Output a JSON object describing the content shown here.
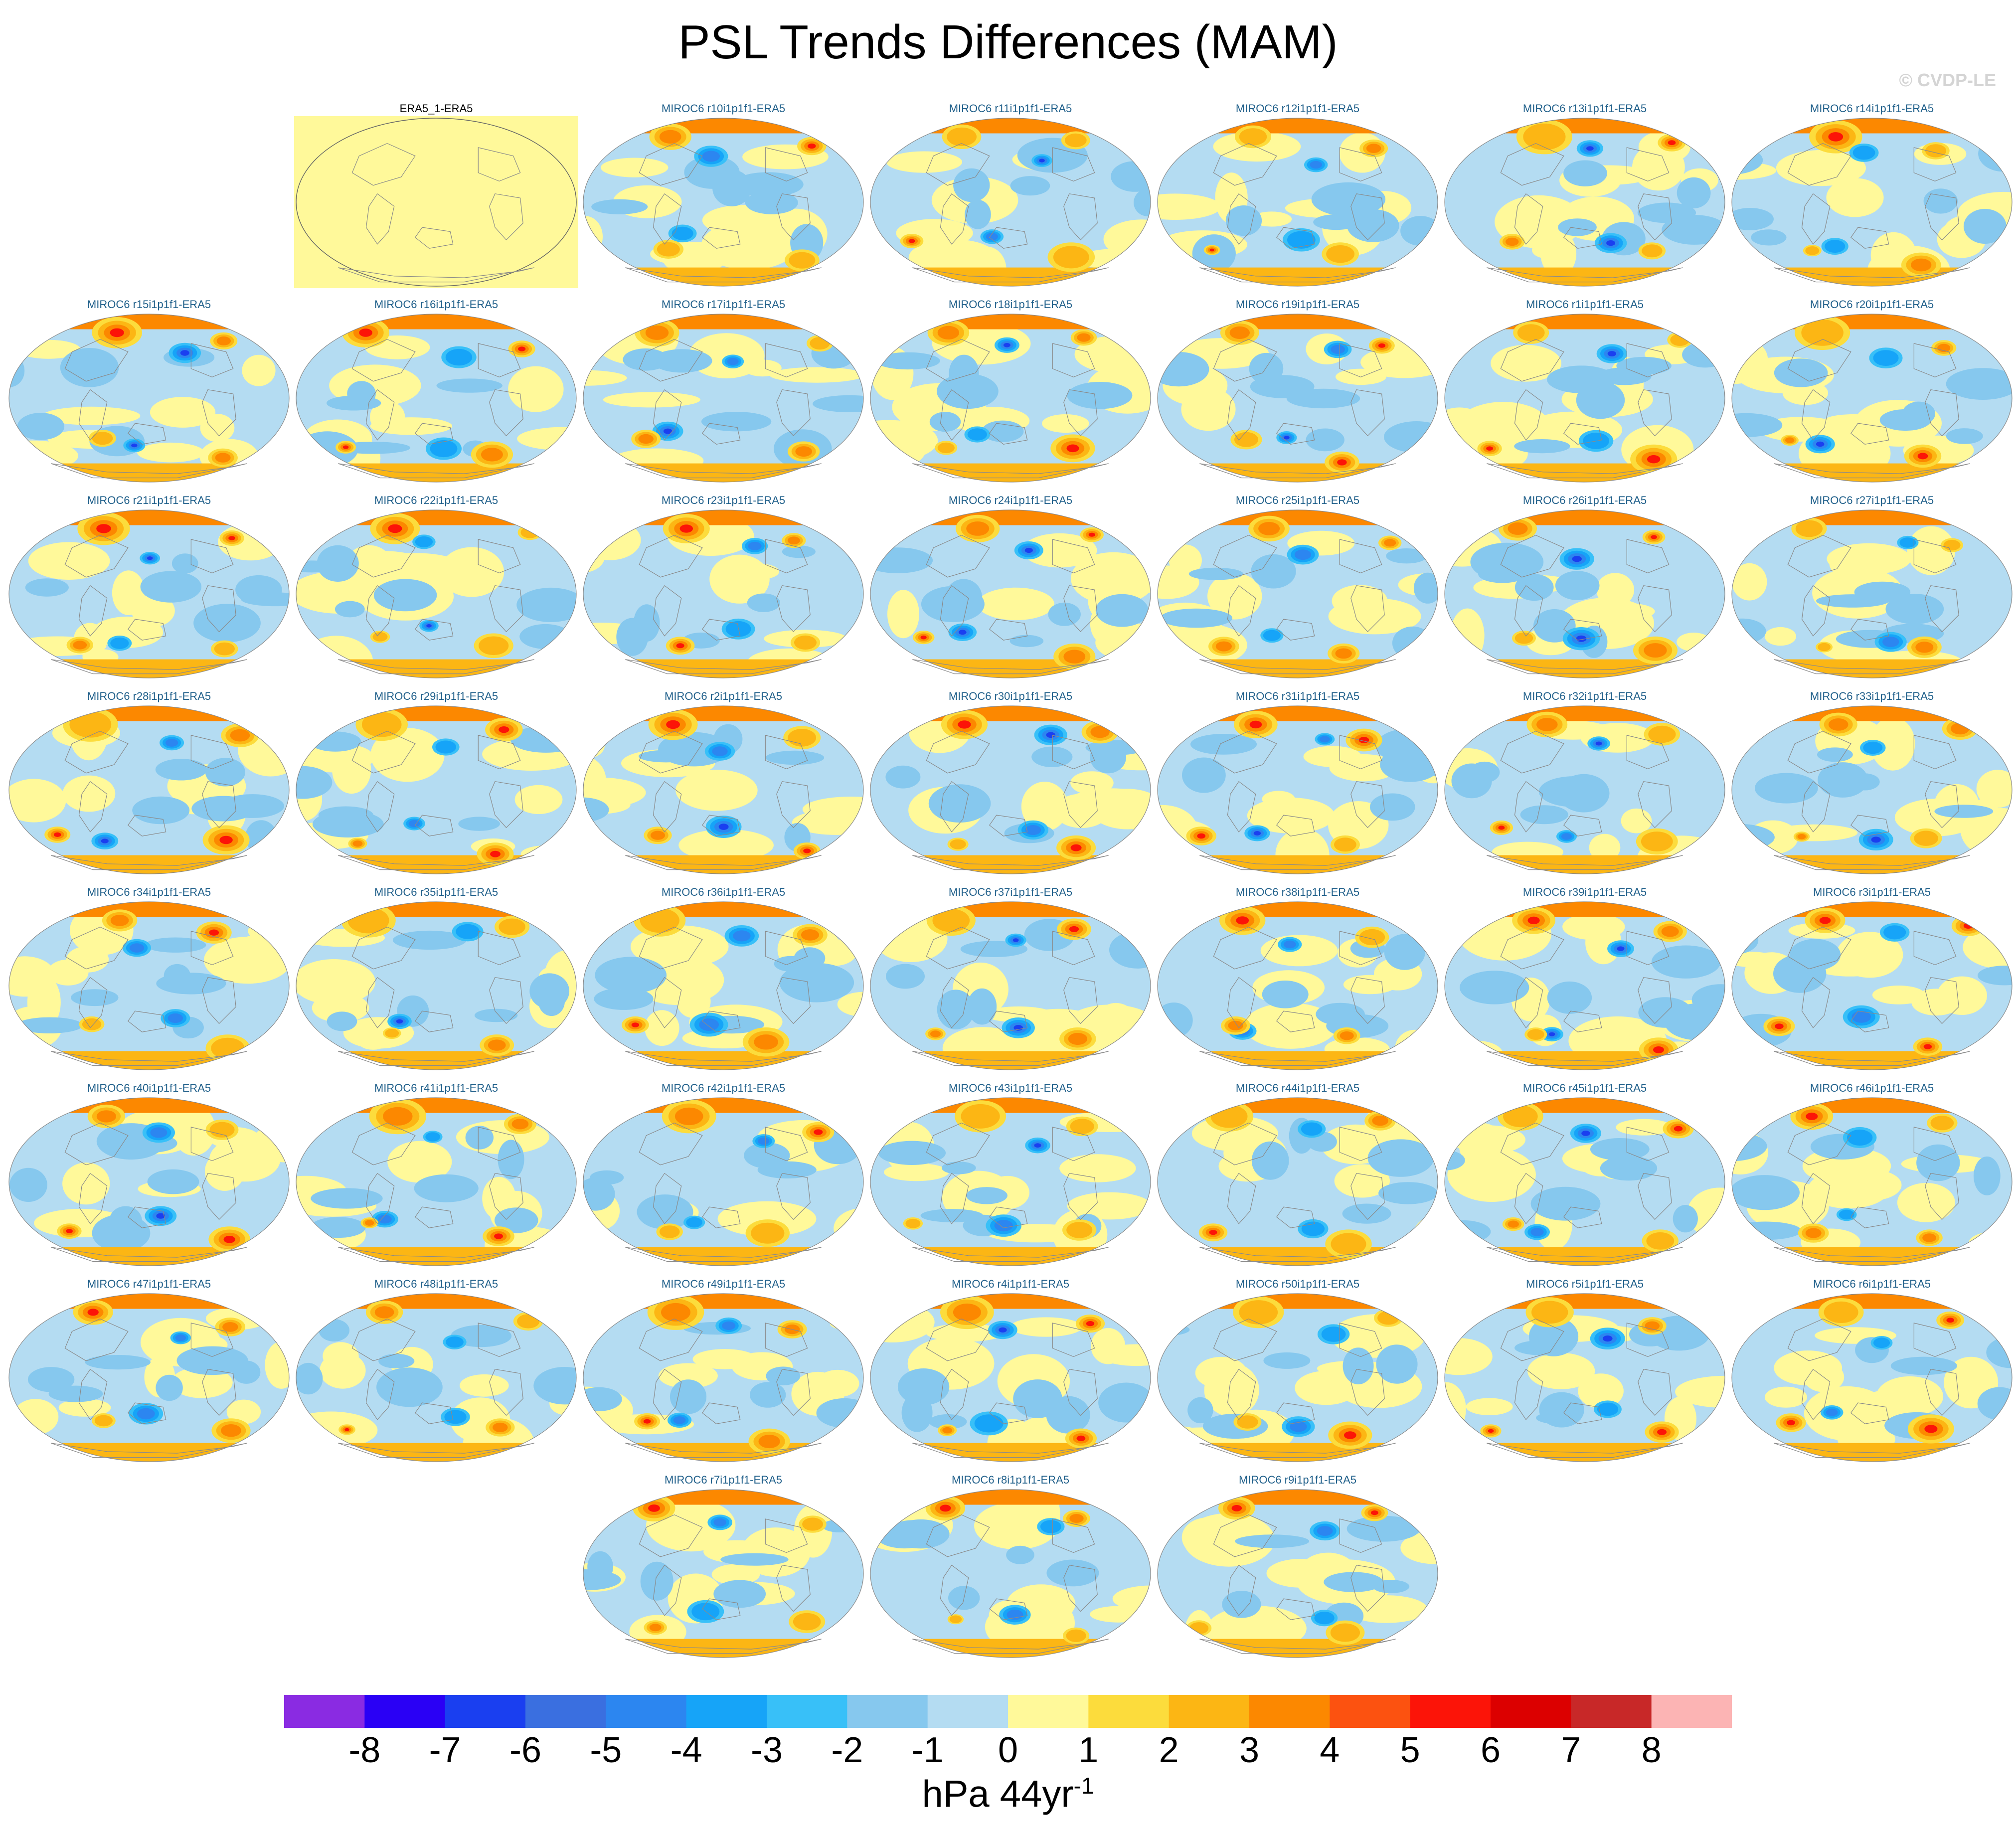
{
  "title": "PSL Trends Differences (MAM)",
  "copyright": "© CVDP-LE",
  "panels": [
    {
      "label": "ERA5_1-ERA5",
      "type": "obs"
    },
    {
      "label": "MIROC6 r10i1p1f1-ERA5"
    },
    {
      "label": "MIROC6 r11i1p1f1-ERA5"
    },
    {
      "label": "MIROC6 r12i1p1f1-ERA5"
    },
    {
      "label": "MIROC6 r13i1p1f1-ERA5"
    },
    {
      "label": "MIROC6 r14i1p1f1-ERA5"
    },
    {
      "label": "MIROC6 r15i1p1f1-ERA5"
    },
    {
      "label": "MIROC6 r16i1p1f1-ERA5"
    },
    {
      "label": "MIROC6 r17i1p1f1-ERA5"
    },
    {
      "label": "MIROC6 r18i1p1f1-ERA5"
    },
    {
      "label": "MIROC6 r19i1p1f1-ERA5"
    },
    {
      "label": "MIROC6 r1i1p1f1-ERA5"
    },
    {
      "label": "MIROC6 r20i1p1f1-ERA5"
    },
    {
      "label": "MIROC6 r21i1p1f1-ERA5"
    },
    {
      "label": "MIROC6 r22i1p1f1-ERA5"
    },
    {
      "label": "MIROC6 r23i1p1f1-ERA5"
    },
    {
      "label": "MIROC6 r24i1p1f1-ERA5"
    },
    {
      "label": "MIROC6 r25i1p1f1-ERA5"
    },
    {
      "label": "MIROC6 r26i1p1f1-ERA5"
    },
    {
      "label": "MIROC6 r27i1p1f1-ERA5"
    },
    {
      "label": "MIROC6 r28i1p1f1-ERA5"
    },
    {
      "label": "MIROC6 r29i1p1f1-ERA5"
    },
    {
      "label": "MIROC6 r2i1p1f1-ERA5"
    },
    {
      "label": "MIROC6 r30i1p1f1-ERA5"
    },
    {
      "label": "MIROC6 r31i1p1f1-ERA5"
    },
    {
      "label": "MIROC6 r32i1p1f1-ERA5"
    },
    {
      "label": "MIROC6 r33i1p1f1-ERA5"
    },
    {
      "label": "MIROC6 r34i1p1f1-ERA5"
    },
    {
      "label": "MIROC6 r35i1p1f1-ERA5"
    },
    {
      "label": "MIROC6 r36i1p1f1-ERA5"
    },
    {
      "label": "MIROC6 r37i1p1f1-ERA5"
    },
    {
      "label": "MIROC6 r38i1p1f1-ERA5"
    },
    {
      "label": "MIROC6 r39i1p1f1-ERA5"
    },
    {
      "label": "MIROC6 r3i1p1f1-ERA5"
    },
    {
      "label": "MIROC6 r40i1p1f1-ERA5"
    },
    {
      "label": "MIROC6 r41i1p1f1-ERA5"
    },
    {
      "label": "MIROC6 r42i1p1f1-ERA5"
    },
    {
      "label": "MIROC6 r43i1p1f1-ERA5"
    },
    {
      "label": "MIROC6 r44i1p1f1-ERA5"
    },
    {
      "label": "MIROC6 r45i1p1f1-ERA5"
    },
    {
      "label": "MIROC6 r46i1p1f1-ERA5"
    },
    {
      "label": "MIROC6 r47i1p1f1-ERA5"
    },
    {
      "label": "MIROC6 r48i1p1f1-ERA5"
    },
    {
      "label": "MIROC6 r49i1p1f1-ERA5"
    },
    {
      "label": "MIROC6 r4i1p1f1-ERA5"
    },
    {
      "label": "MIROC6 r50i1p1f1-ERA5"
    },
    {
      "label": "MIROC6 r5i1p1f1-ERA5"
    },
    {
      "label": "MIROC6 r6i1p1f1-ERA5"
    },
    {
      "label": "MIROC6 r7i1p1f1-ERA5"
    },
    {
      "label": "MIROC6 r8i1p1f1-ERA5"
    },
    {
      "label": "MIROC6 r9i1p1f1-ERA5"
    }
  ],
  "colorbar": {
    "ticks": [
      "-8",
      "-7",
      "-6",
      "-5",
      "-4",
      "-3",
      "-2",
      "-1",
      "0",
      "1",
      "2",
      "3",
      "4",
      "5",
      "6",
      "7",
      "8"
    ],
    "colors": [
      "#8a2be2",
      "#2a00f5",
      "#1a3ff0",
      "#3a6fe0",
      "#2c86f0",
      "#16a4f8",
      "#38c0f8",
      "#86c8ee",
      "#b4dcf2",
      "#fff99a",
      "#fcdc3c",
      "#fcb614",
      "#fc8800",
      "#fc5210",
      "#fc1408",
      "#dc0000",
      "#c82828",
      "#fcb4b4"
    ],
    "label": "hPa 44yr",
    "label_superscript": "-1"
  },
  "field_colors": {
    "obs": "#fff99a",
    "base": "#b4dcf2",
    "coast": "#8a8a8a"
  }
}
